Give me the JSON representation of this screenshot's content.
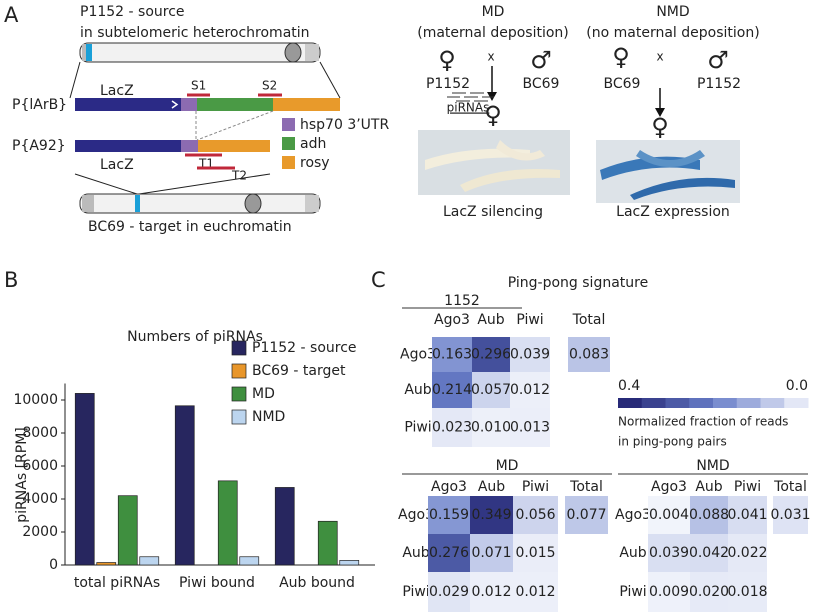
{
  "panel_a": {
    "label": "A",
    "source_title": "P1152 - source",
    "source_subtitle": "in subtelomeric heterochromatin",
    "construct1": {
      "name": "P{lArB}",
      "lacz": "LacZ",
      "s1": "S1",
      "s2": "S2"
    },
    "construct2": {
      "name": "P{A92}",
      "lacz": "LacZ",
      "t1": "T1",
      "t2": "T2"
    },
    "legend": [
      "hsp70 3’UTR",
      "adh",
      "rosy"
    ],
    "target_title": "BC69 - target in euchromatin",
    "crosses": [
      {
        "title": "MD",
        "subtitle": "(maternal deposition)",
        "female_symbol": "♀",
        "cross": "x",
        "male_symbol": "♂",
        "female": "P1152",
        "male": "BC69",
        "pirnas": "piRNAs",
        "offspring_symbol": "♀",
        "result": "LacZ silencing"
      },
      {
        "title": "NMD",
        "subtitle": "(no maternal deposition)",
        "female_symbol": "♀",
        "cross": "x",
        "male_symbol": "♂",
        "female": "BC69",
        "male": "P1152",
        "offspring_symbol": "♀",
        "result": "LacZ expression"
      }
    ]
  },
  "panel_b_label": "B",
  "chart_data": {
    "type": "bar",
    "title": "Numbers of piRNAs",
    "y_label": "piRNAs [RPM]",
    "categories": [
      "total piRNAs",
      "Piwi bound",
      "Aub bound"
    ],
    "series": [
      {
        "name": "P1152 - source",
        "color": "#27265f",
        "values": [
          10400,
          9650,
          4700
        ]
      },
      {
        "name": "BC69 - target",
        "color": "#e8962a",
        "values": [
          150,
          0,
          0
        ]
      },
      {
        "name": "MD",
        "color": "#3f8f3f",
        "values": [
          4200,
          5100,
          2650
        ]
      },
      {
        "name": "NMD",
        "color": "#bcd5ef",
        "values": [
          500,
          500,
          280
        ]
      }
    ],
    "ylim": [
      0,
      11000
    ],
    "yticks": [
      0,
      2000,
      4000,
      6000,
      8000,
      10000
    ],
    "grid": false,
    "legend": "upper right"
  },
  "panel_c": {
    "label": "C",
    "title": "Ping-pong signature",
    "colorbar": {
      "clim": [
        0.4,
        0
      ],
      "ticks": [
        0.4,
        {
          "value": 0,
          "label": "0.0"
        }
      ],
      "caption": [
        "Normalized fraction of reads",
        "in ping-pong pairs"
      ]
    },
    "heatmaps": [
      {
        "title": "1152",
        "columns": [
          "Ago3",
          "Aub",
          "Piwi",
          "Total"
        ],
        "rows": [
          "Ago3",
          "Aub",
          "Piwi"
        ],
        "values": [
          [
            0.163,
            0.296,
            0.039,
            0.083
          ],
          [
            0.214,
            0.057,
            0.012,
            null
          ],
          [
            0.023,
            0.01,
            0.013,
            null
          ]
        ],
        "value_labels": [
          [
            "0.163",
            "0.296",
            "0.039",
            "0.083"
          ],
          [
            "0.214",
            "0.057",
            "0.012",
            null
          ],
          [
            "0.023",
            "0.010",
            "0.013",
            null
          ]
        ]
      },
      {
        "title": "MD",
        "columns": [
          "Ago3",
          "Aub",
          "Piwi",
          "Total"
        ],
        "rows": [
          "Ago3",
          "Aub",
          "Piwi"
        ],
        "values": [
          [
            0.159,
            0.349,
            0.056,
            0.077
          ],
          [
            0.276,
            0.071,
            0.015,
            null
          ],
          [
            0.029,
            0.012,
            0.012,
            null
          ]
        ],
        "value_labels": [
          [
            "0.159",
            "0.349",
            "0.056",
            "0.077"
          ],
          [
            "0.276",
            "0.071",
            "0.015",
            null
          ],
          [
            "0.029",
            "0.012",
            "0.012",
            null
          ]
        ]
      },
      {
        "title": "NMD",
        "columns": [
          "Ago3",
          "Aub",
          "Piwi",
          "Total"
        ],
        "rows": [
          "Ago3",
          "Aub",
          "Piwi"
        ],
        "values": [
          [
            0.004,
            0.088,
            0.041,
            0.031
          ],
          [
            0.039,
            0.042,
            0.022,
            null
          ],
          [
            0.009,
            0.02,
            0.018,
            null
          ]
        ],
        "value_labels": [
          [
            "0.004",
            "0.088",
            "0.041",
            "0.031"
          ],
          [
            "0.039",
            "0.042",
            "0.022",
            null
          ],
          [
            "0.009",
            "0.020",
            "0.018",
            null
          ]
        ]
      }
    ]
  }
}
